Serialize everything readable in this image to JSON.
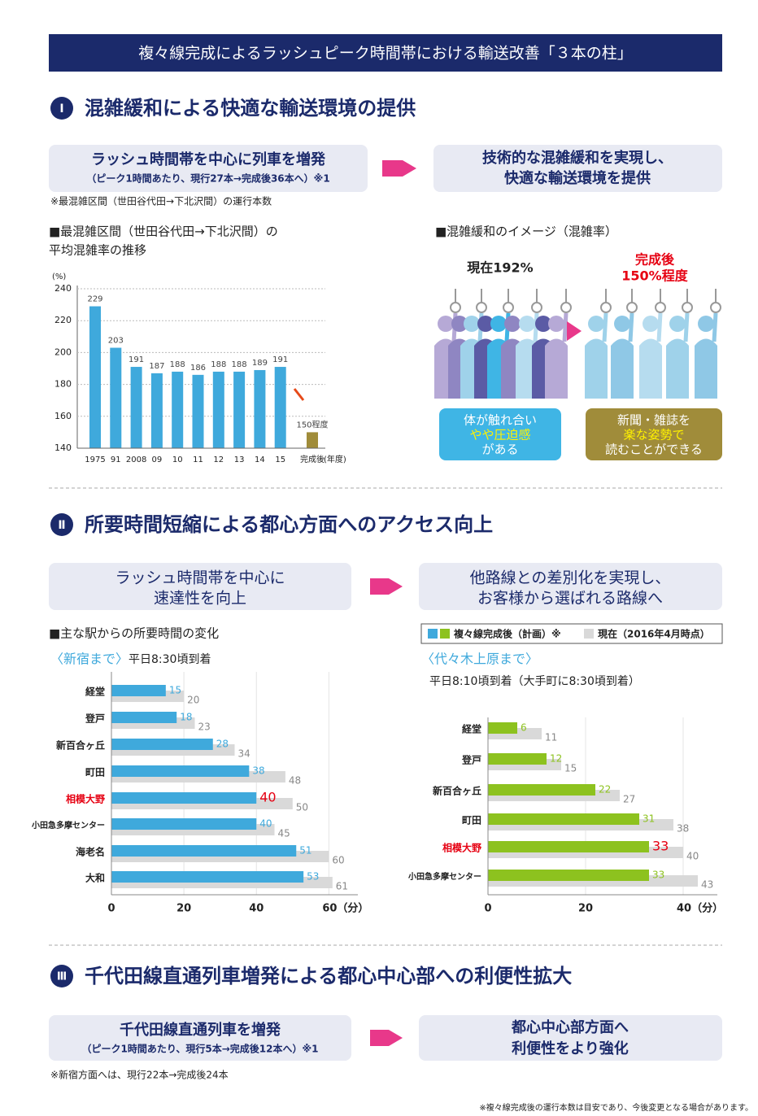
{
  "header": {
    "title": "複々線完成によるラッシュピーク時間帯における輸送改善「３本の柱」"
  },
  "sections": [
    {
      "numeral": "Ⅰ",
      "heading": "混雑緩和による快適な輸送環境の提供",
      "box_left": [
        "ラッシュ時間帯を中心に列車を増発",
        "（ピーク1時間あたり、現行27本→完成後36本へ）※1"
      ],
      "box_right": [
        "技術的な混雑緩和を実現し、",
        "快適な輸送環境を提供"
      ],
      "note": "※最混雑区間（世田谷代田→下北沢間）の運行本数",
      "image": {
        "title": "■混雑緩和のイメージ（混雑率）",
        "now": "現在192%",
        "after": [
          "完成後",
          "150%程度"
        ],
        "bubble_left": [
          "体が触れ合い",
          "やや圧迫感",
          "がある"
        ],
        "bubble_right": [
          "新聞・雑誌を",
          "楽な姿勢で",
          "読むことができる"
        ]
      }
    },
    {
      "numeral": "Ⅱ",
      "heading": "所要時間短縮による都心方面へのアクセス向上",
      "box_left": [
        "ラッシュ時間帯を中心に",
        "速達性を向上"
      ],
      "box_right": [
        "他路線との差別化を実現し、",
        "お客様から選ばれる路線へ"
      ],
      "chart_title": "■主な駅からの所要時間の変化"
    },
    {
      "numeral": "Ⅲ",
      "heading": "千代田線直通列車増発による都心中心部への利便性拡大",
      "box_left": [
        "千代田線直通列車を増発",
        "（ピーク1時間あたり、現行5本→完成後12本へ）※1"
      ],
      "box_right": [
        "都心中心部方面へ",
        "利便性をより強化"
      ],
      "note": "※新宿方面へは、現行22本→完成後24本"
    }
  ],
  "footer": "※複々線完成後の運行本数は目安であり、今後変更となる場合があります。",
  "chart_data": [
    {
      "type": "bar",
      "title": [
        "■最混雑区間（世田谷代田→下北沢間）の",
        "平均混雑率の推移"
      ],
      "unit": "(%)",
      "xlabel": "(年度)",
      "categories": [
        "1975",
        "91",
        "2008",
        "09",
        "10",
        "11",
        "12",
        "13",
        "14",
        "15",
        "完成後"
      ],
      "values": [
        229,
        203,
        191,
        187,
        188,
        186,
        188,
        188,
        189,
        191,
        150
      ],
      "value_labels": [
        "229",
        "203",
        "191",
        "187",
        "188",
        "186",
        "188",
        "188",
        "189",
        "191",
        "150程度"
      ],
      "colors": [
        "#3fa9dc",
        "#3fa9dc",
        "#3fa9dc",
        "#3fa9dc",
        "#3fa9dc",
        "#3fa9dc",
        "#3fa9dc",
        "#3fa9dc",
        "#3fa9dc",
        "#3fa9dc",
        "#a08c3a"
      ],
      "ylim": [
        140,
        240
      ],
      "yticks": [
        140,
        160,
        180,
        200,
        220,
        240
      ],
      "grid": true
    },
    {
      "type": "hbar",
      "title": "〈新宿まで〉",
      "subtitle": "平日8:30頃到着",
      "categories": [
        "経堂",
        "登戸",
        "新百合ヶ丘",
        "町田",
        "相模大野",
        "小田急多摩センター",
        "海老名",
        "大和"
      ],
      "series": [
        {
          "color": "#3fa9dc",
          "values": [
            15,
            18,
            28,
            38,
            40,
            40,
            51,
            53
          ]
        },
        {
          "color": "#d9d9d9",
          "values": [
            20,
            23,
            34,
            48,
            50,
            45,
            60,
            61
          ]
        }
      ],
      "xlim": [
        0,
        68
      ],
      "xticks": [
        0,
        20,
        40,
        {
          "value": 60,
          "label": "60（分）"
        }
      ],
      "highlight_index": 4,
      "highlight_color": "#e60012"
    },
    {
      "type": "hbar",
      "title": "〈代々木上原まで〉",
      "subtitle": "平日8:10頃到着（大手町に8:30頃到着）",
      "categories": [
        "経堂",
        "登戸",
        "新百合ヶ丘",
        "町田",
        "相模大野",
        "小田急多摩センター"
      ],
      "series": [
        {
          "name": "複々線完成後（計画）※",
          "color": "#8dc21f",
          "values": [
            6,
            12,
            22,
            31,
            33,
            33
          ]
        },
        {
          "name": "現在（2016年4月時点）",
          "color": "#d9d9d9",
          "values": [
            11,
            15,
            27,
            38,
            40,
            43
          ]
        }
      ],
      "xlim": [
        0,
        47
      ],
      "xticks": [
        0,
        20,
        {
          "value": 40,
          "label": "40（分）"
        }
      ],
      "highlight_index": 4,
      "highlight_color": "#e60012"
    }
  ]
}
